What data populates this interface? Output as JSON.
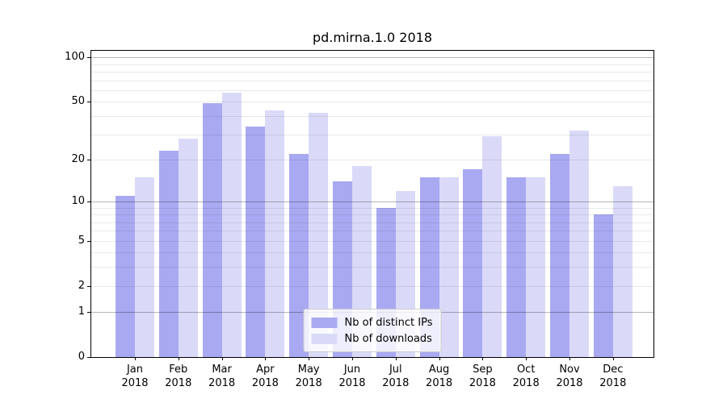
{
  "title": "pd.mirna.1.0 2018",
  "chart_data": {
    "type": "bar",
    "title": "pd.mirna.1.0 2018",
    "categories": [
      "Jan 2018",
      "Feb 2018",
      "Mar 2018",
      "Apr 2018",
      "May 2018",
      "Jun 2018",
      "Jul 2018",
      "Aug 2018",
      "Sep 2018",
      "Oct 2018",
      "Nov 2018",
      "Dec 2018"
    ],
    "series": [
      {
        "name": "Nb of distinct IPs",
        "color": "#a9a9f2",
        "values": [
          11,
          23,
          49,
          34,
          22,
          14,
          9,
          15,
          17,
          15,
          22,
          8
        ]
      },
      {
        "name": "Nb of downloads",
        "color": "#dadaf8",
        "values": [
          15,
          28,
          58,
          44,
          42,
          18,
          12,
          15,
          29,
          15,
          32,
          13
        ]
      }
    ],
    "xlabel": "",
    "ylabel": "",
    "yscale": "log1p",
    "ylim": [
      0,
      111
    ],
    "ytick_values": [
      0,
      1,
      2,
      5,
      10,
      20,
      50,
      100
    ],
    "major_gridlines": [
      1,
      10,
      100
    ],
    "minor_gridlines": [
      2,
      3,
      4,
      5,
      6,
      7,
      8,
      9,
      20,
      30,
      40,
      50,
      60,
      70,
      80,
      90
    ],
    "grid": true,
    "legend_position": "lower center"
  }
}
